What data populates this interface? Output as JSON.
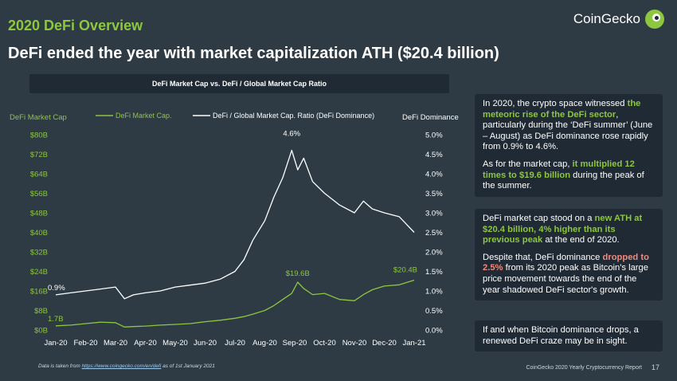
{
  "section_title": "2020 DeFi Overview",
  "headline": "DeFi ended the year with market capitalization ATH ($20.4 billion)",
  "brand": {
    "name": "CoinGecko",
    "logo_icon": "gecko-icon"
  },
  "colors": {
    "background": "#2e3b45",
    "panel": "#1f2a34",
    "green": "#8dc63f",
    "red": "#f08a7c",
    "line_white": "#ffffff"
  },
  "chart_data": {
    "type": "line",
    "title": "DeFi Market Cap vs. DeFi / Global Market Cap Ratio",
    "ylabel_left": "DeFi Market Cap",
    "ylabel_right": "DeFi Dominance",
    "legend": [
      "DeFi Market Cap.",
      "DeFi / Global Market Cap. Ratio (DeFi Dominance)"
    ],
    "x_labels": [
      "Jan-20",
      "Feb-20",
      "Mar-20",
      "Apr-20",
      "May-20",
      "Jun-20",
      "Jul-20",
      "Aug-20",
      "Sep-20",
      "Oct-20",
      "Nov-20",
      "Dec-20",
      "Jan-21"
    ],
    "y_left_ticks": [
      "$0B",
      "$8B",
      "$16B",
      "$24B",
      "$32B",
      "$40B",
      "$48B",
      "$56B",
      "$64B",
      "$72B",
      "$80B"
    ],
    "y_right_ticks": [
      "0.0%",
      "0.5%",
      "1.0%",
      "1.5%",
      "2.0%",
      "2.5%",
      "3.0%",
      "3.5%",
      "4.0%",
      "4.5%",
      "5.0%"
    ],
    "ylim_left": [
      0,
      80
    ],
    "ylim_right": [
      0,
      5
    ],
    "x_months": [
      0,
      0.5,
      1,
      1.5,
      2,
      2.3,
      2.6,
      3,
      3.5,
      4,
      4.5,
      5,
      5.5,
      6,
      6.3,
      6.6,
      7,
      7.3,
      7.6,
      7.9,
      8.1,
      8.3,
      8.6,
      9,
      9.5,
      10,
      10.3,
      10.6,
      11,
      11.5,
      12
    ],
    "series": [
      {
        "name": "DeFi Market Cap.",
        "color": "#8dc63f",
        "axis": "left",
        "values": [
          1.7,
          2.0,
          2.6,
          3.2,
          3.0,
          1.2,
          1.4,
          1.6,
          2.0,
          2.3,
          2.6,
          3.4,
          4.0,
          4.8,
          5.5,
          6.5,
          8.0,
          10.0,
          12.5,
          15.0,
          19.6,
          17.0,
          14.5,
          15.0,
          12.5,
          12.0,
          14.5,
          16.5,
          18.0,
          18.5,
          20.4
        ]
      },
      {
        "name": "DeFi / Global Market Cap. Ratio (DeFi Dominance)",
        "color": "#ffffff",
        "axis": "right",
        "values": [
          0.9,
          0.95,
          1.0,
          1.05,
          1.1,
          0.8,
          0.9,
          0.95,
          1.0,
          1.1,
          1.15,
          1.2,
          1.3,
          1.5,
          1.8,
          2.3,
          2.8,
          3.4,
          3.9,
          4.6,
          4.1,
          4.4,
          3.8,
          3.5,
          3.2,
          3.0,
          3.3,
          3.1,
          3.0,
          2.9,
          2.5
        ]
      }
    ],
    "annotations": [
      {
        "text": "0.9%",
        "series": 1,
        "index": 0
      },
      {
        "text": "1.7B",
        "series": 0,
        "index": 0
      },
      {
        "text": "4.6%",
        "series": 1,
        "index": 19
      },
      {
        "text": "$19.6B",
        "series": 0,
        "index": 20
      },
      {
        "text": "$20.4B",
        "series": 0,
        "index": 30
      }
    ]
  },
  "info_boxes": [
    {
      "paragraphs": [
        [
          {
            "t": "In 2020, the crypto space witnessed "
          },
          {
            "t": "the meteoric rise of the DeFi sector",
            "s": "green"
          },
          {
            "t": ", particularly during the ‘DeFi summer’ (June – August) as DeFi dominance rose rapidly from 0.9% to 4.6%."
          }
        ],
        [
          {
            "t": "As for the market cap, "
          },
          {
            "t": "it multiplied 12 times to $19.6 billion",
            "s": "green"
          },
          {
            "t": " during the peak of the summer."
          }
        ]
      ]
    },
    {
      "paragraphs": [
        [
          {
            "t": "DeFi market cap stood on a "
          },
          {
            "t": "new ATH at $20.4 billion, 4% higher than its previous peak",
            "s": "green"
          },
          {
            "t": " at the end of 2020."
          }
        ],
        [
          {
            "t": "Despite that, DeFi dominance "
          },
          {
            "t": "dropped to 2.5%",
            "s": "red"
          },
          {
            "t": " from its 2020 peak as Bitcoin's large price movement towards the end of the year shadowed DeFi sector's growth."
          }
        ]
      ]
    },
    {
      "paragraphs": [
        [
          {
            "t": "If and when Bitcoin dominance drops, a renewed DeFi craze may be in sight."
          }
        ]
      ]
    }
  ],
  "footnote": {
    "prefix": "Data is taken from ",
    "link": "https://www.coingecko.com/en/defi",
    "suffix": " as of 1st January 2021"
  },
  "footer": {
    "report": "CoinGecko 2020 Yearly Cryptocurrency Report",
    "page": "17"
  }
}
